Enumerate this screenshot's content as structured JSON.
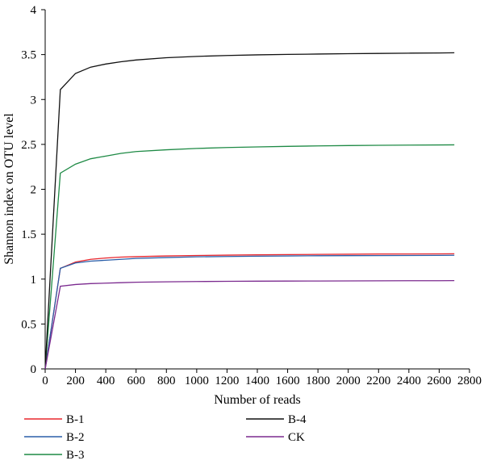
{
  "chart_data": {
    "type": "line",
    "xlabel": "Number of reads",
    "ylabel": "Shannon index on OTU level",
    "xlim": [
      0,
      2800
    ],
    "ylim": [
      0,
      4
    ],
    "xticks": [
      0,
      200,
      400,
      600,
      800,
      1000,
      1200,
      1400,
      1600,
      1800,
      2000,
      2200,
      2400,
      2600,
      2800
    ],
    "yticks": [
      0,
      0.5,
      1,
      1.5,
      2,
      2.5,
      3,
      3.5,
      4
    ],
    "ytick_labels": [
      "0",
      "0.5",
      "1",
      "1.5",
      "2",
      "2.5",
      "3",
      "3.5",
      "4"
    ],
    "grid": false,
    "legend_position": "bottom",
    "x": [
      0,
      100,
      200,
      300,
      400,
      500,
      600,
      800,
      1000,
      1200,
      1400,
      1600,
      1800,
      2000,
      2200,
      2400,
      2600,
      2700
    ],
    "series": [
      {
        "name": "B-1",
        "color": "#e8262d",
        "values": [
          0,
          1.12,
          1.19,
          1.22,
          1.235,
          1.245,
          1.25,
          1.258,
          1.263,
          1.267,
          1.27,
          1.273,
          1.275,
          1.277,
          1.279,
          1.28,
          1.281,
          1.282
        ]
      },
      {
        "name": "B-2",
        "color": "#2a5ea8",
        "values": [
          0,
          1.12,
          1.18,
          1.2,
          1.21,
          1.22,
          1.23,
          1.24,
          1.248,
          1.252,
          1.255,
          1.258,
          1.26,
          1.261,
          1.262,
          1.263,
          1.264,
          1.265
        ]
      },
      {
        "name": "B-3",
        "color": "#1e8a45",
        "values": [
          0,
          2.18,
          2.28,
          2.34,
          2.37,
          2.4,
          2.42,
          2.44,
          2.455,
          2.465,
          2.472,
          2.478,
          2.483,
          2.487,
          2.49,
          2.492,
          2.494,
          2.495
        ]
      },
      {
        "name": "B-4",
        "color": "#111111",
        "values": [
          0,
          3.11,
          3.29,
          3.36,
          3.395,
          3.42,
          3.44,
          3.465,
          3.48,
          3.49,
          3.497,
          3.502,
          3.506,
          3.51,
          3.513,
          3.516,
          3.518,
          3.52
        ]
      },
      {
        "name": "CK",
        "color": "#7b2a8f",
        "values": [
          0,
          0.92,
          0.94,
          0.95,
          0.955,
          0.96,
          0.965,
          0.97,
          0.973,
          0.975,
          0.977,
          0.978,
          0.979,
          0.98,
          0.981,
          0.982,
          0.982,
          0.983
        ]
      }
    ]
  }
}
